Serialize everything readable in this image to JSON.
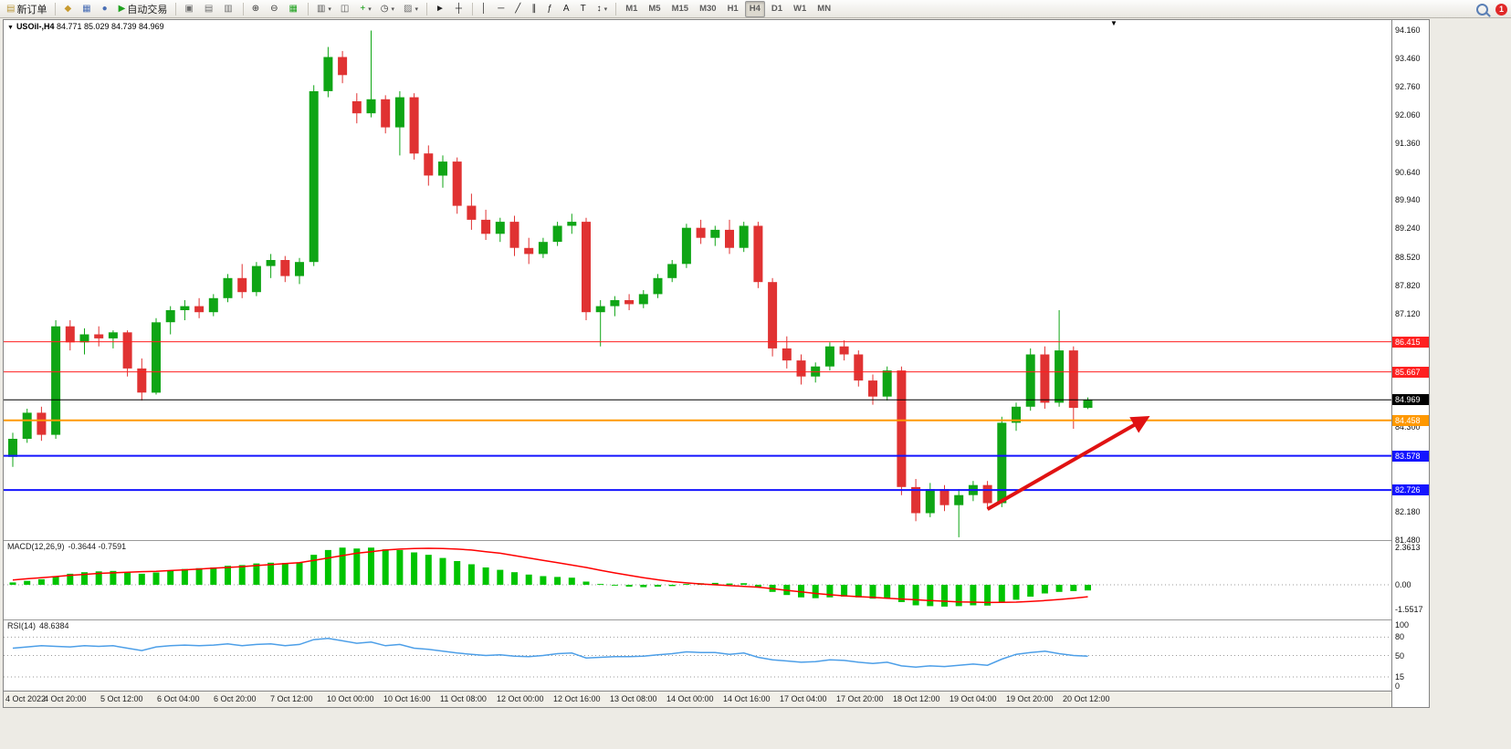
{
  "colors": {
    "bull": "#0FA515",
    "bear": "#E03232",
    "macd_bar": "#00C400",
    "macd_signal": "#FF0000",
    "rsi_line": "#4D9FE8",
    "arrow": "#E01212",
    "grid_dotted": "#999999"
  },
  "toolbar": {
    "notification_count": "1",
    "groups": [
      {
        "items": [
          {
            "name": "new-order",
            "icon": "new-order-icon",
            "glyph": "▤",
            "color": "#b8963a",
            "label": "新订单"
          }
        ]
      },
      {
        "items": [
          {
            "name": "market-watch",
            "icon": "market-watch-icon",
            "glyph": "◆",
            "color": "#c79a2e"
          },
          {
            "name": "data-window",
            "icon": "data-window-icon",
            "glyph": "▦",
            "color": "#4a6fb5"
          },
          {
            "name": "navigator",
            "icon": "navigator-icon",
            "glyph": "●",
            "color": "#4a6fb5"
          },
          {
            "name": "auto-trading",
            "icon": "auto-trading-icon",
            "glyph": "▶",
            "color": "#1ea11e",
            "label": "自动交易"
          }
        ]
      },
      {
        "items": [
          {
            "name": "tile-windows",
            "icon": "tile-windows-icon",
            "glyph": "▣",
            "color": "#6e6e6e"
          },
          {
            "name": "cascade-windows",
            "icon": "cascade-windows-icon",
            "glyph": "▤",
            "color": "#6e6e6e"
          },
          {
            "name": "arrange-windows",
            "icon": "arrange-windows-icon",
            "glyph": "▥",
            "color": "#6e6e6e"
          }
        ]
      },
      {
        "items": [
          {
            "name": "zoom-in",
            "icon": "zoom-in-icon",
            "glyph": "⊕",
            "color": "#333333"
          },
          {
            "name": "zoom-out",
            "icon": "zoom-out-icon",
            "glyph": "⊖",
            "color": "#333333"
          },
          {
            "name": "tile-charts",
            "icon": "tile-charts-icon",
            "glyph": "▦",
            "color": "#1ea11e"
          }
        ]
      },
      {
        "items": [
          {
            "name": "chart-bar-mode",
            "icon": "bar-chart-icon",
            "glyph": "▥",
            "color": "#555555",
            "dropdown": true
          },
          {
            "name": "chart-candle-mode",
            "icon": "candlestick-icon",
            "glyph": "◫",
            "color": "#555555"
          },
          {
            "name": "indicators",
            "icon": "indicators-icon",
            "glyph": "+",
            "color": "#089608",
            "dropdown": true
          },
          {
            "name": "periods",
            "icon": "clock-icon",
            "glyph": "◷",
            "color": "#333333",
            "dropdown": true
          },
          {
            "name": "templates",
            "icon": "templates-icon",
            "glyph": "▨",
            "color": "#6e6e6e",
            "dropdown": true
          }
        ]
      },
      {
        "items": [
          {
            "name": "cursor",
            "icon": "cursor-icon",
            "glyph": "►",
            "color": "#222222"
          },
          {
            "name": "crosshair",
            "icon": "crosshair-icon",
            "glyph": "┼",
            "color": "#222222"
          }
        ]
      },
      {
        "items": [
          {
            "name": "vertical-line",
            "icon": "vertical-line-icon",
            "glyph": "│",
            "color": "#222222"
          },
          {
            "name": "horizontal-line",
            "icon": "horizontal-line-icon",
            "glyph": "─",
            "color": "#222222"
          },
          {
            "name": "trendline",
            "icon": "trendline-icon",
            "glyph": "╱",
            "color": "#222222"
          },
          {
            "name": "channel",
            "icon": "channel-icon",
            "glyph": "∥",
            "color": "#222222"
          },
          {
            "name": "fibonacci",
            "icon": "fibonacci-icon",
            "glyph": "ƒ",
            "color": "#222222"
          },
          {
            "name": "text",
            "icon": "text-icon",
            "glyph": "A",
            "color": "#222222"
          },
          {
            "name": "text-label",
            "icon": "text-label-icon",
            "glyph": "T",
            "color": "#222222"
          },
          {
            "name": "arrow-objects",
            "icon": "arrow-objects-icon",
            "glyph": "↕",
            "color": "#222222",
            "dropdown": true
          }
        ]
      },
      {
        "items": [
          {
            "name": "tf-m1",
            "label": "M1",
            "tf": true
          },
          {
            "name": "tf-m5",
            "label": "M5",
            "tf": true
          },
          {
            "name": "tf-m15",
            "label": "M15",
            "tf": true
          },
          {
            "name": "tf-m30",
            "label": "M30",
            "tf": true
          },
          {
            "name": "tf-h1",
            "label": "H1",
            "tf": true
          },
          {
            "name": "tf-h4",
            "label": "H4",
            "tf": true,
            "active": true
          },
          {
            "name": "tf-d1",
            "label": "D1",
            "tf": true
          },
          {
            "name": "tf-w1",
            "label": "W1",
            "tf": true
          },
          {
            "name": "tf-mn",
            "label": "MN",
            "tf": true
          }
        ]
      }
    ]
  },
  "chart": {
    "symbol_period": "USOil-,H4",
    "ohlc": "84.771 85.029 84.739 84.969"
  },
  "chart_data": {
    "type": "candlestick",
    "symbol": "USOil-",
    "timeframe": "H4",
    "ylim": [
      81.48,
      94.42
    ],
    "price_ticks": [
      "94.160",
      "93.460",
      "92.760",
      "92.060",
      "91.360",
      "90.640",
      "89.940",
      "89.240",
      "88.520",
      "87.820",
      "87.120",
      "84.300",
      "82.180",
      "81.480"
    ],
    "hlines": [
      {
        "price": 86.415,
        "label": "86.415",
        "color": "#FF2020",
        "width": 1
      },
      {
        "price": 85.667,
        "label": "85.667",
        "color": "#FF2020",
        "width": 1
      },
      {
        "price": 84.969,
        "label": "84.969",
        "color": "#000000",
        "width": 1
      },
      {
        "price": 84.458,
        "label": "84.458",
        "color": "#FF9800",
        "width": 2
      },
      {
        "price": 83.578,
        "label": "83.578",
        "color": "#1414FF",
        "width": 2
      },
      {
        "price": 82.726,
        "label": "82.726",
        "color": "#1414FF",
        "width": 2
      }
    ],
    "x_labels": [
      "4 Oct 2022",
      "4 Oct 20:00",
      "5 Oct 12:00",
      "6 Oct 04:00",
      "6 Oct 20:00",
      "7 Oct 12:00",
      "10 Oct 00:00",
      "10 Oct 16:00",
      "11 Oct 08:00",
      "12 Oct 00:00",
      "12 Oct 16:00",
      "13 Oct 08:00",
      "14 Oct 00:00",
      "14 Oct 16:00",
      "17 Oct 04:00",
      "17 Oct 20:00",
      "18 Oct 12:00",
      "19 Oct 04:00",
      "19 Oct 20:00",
      "20 Oct 12:00"
    ],
    "candles": [
      [
        83.55,
        84.15,
        83.3,
        84.0
      ],
      [
        84.0,
        84.75,
        83.9,
        84.65
      ],
      [
        84.65,
        84.8,
        83.95,
        84.1
      ],
      [
        84.1,
        86.95,
        84.0,
        86.8
      ],
      [
        86.8,
        86.95,
        86.2,
        86.4
      ],
      [
        86.4,
        86.75,
        86.1,
        86.6
      ],
      [
        86.6,
        86.8,
        86.3,
        86.5
      ],
      [
        86.5,
        86.7,
        86.25,
        86.65
      ],
      [
        86.65,
        86.7,
        85.55,
        85.75
      ],
      [
        85.75,
        86.0,
        84.95,
        85.15
      ],
      [
        85.15,
        87.0,
        85.1,
        86.9
      ],
      [
        86.9,
        87.3,
        86.6,
        87.2
      ],
      [
        87.2,
        87.45,
        86.95,
        87.3
      ],
      [
        87.3,
        87.5,
        87.0,
        87.15
      ],
      [
        87.15,
        87.6,
        87.05,
        87.5
      ],
      [
        87.5,
        88.1,
        87.4,
        88.0
      ],
      [
        88.0,
        88.35,
        87.5,
        87.65
      ],
      [
        87.65,
        88.4,
        87.55,
        88.3
      ],
      [
        88.3,
        88.6,
        88.0,
        88.45
      ],
      [
        88.45,
        88.55,
        87.9,
        88.05
      ],
      [
        88.05,
        88.5,
        87.85,
        88.4
      ],
      [
        88.4,
        92.8,
        88.3,
        92.65
      ],
      [
        92.65,
        93.75,
        92.5,
        93.5
      ],
      [
        93.5,
        93.65,
        92.85,
        93.05
      ],
      [
        92.4,
        92.6,
        91.85,
        92.1
      ],
      [
        92.1,
        94.16,
        92.0,
        92.45
      ],
      [
        92.45,
        92.55,
        91.6,
        91.75
      ],
      [
        91.75,
        92.65,
        91.05,
        92.5
      ],
      [
        92.5,
        92.6,
        90.95,
        91.1
      ],
      [
        91.1,
        91.3,
        90.3,
        90.55
      ],
      [
        90.55,
        91.05,
        90.25,
        90.9
      ],
      [
        90.9,
        91.0,
        89.6,
        89.8
      ],
      [
        89.8,
        90.1,
        89.2,
        89.45
      ],
      [
        89.45,
        89.7,
        88.95,
        89.1
      ],
      [
        89.1,
        89.5,
        88.9,
        89.4
      ],
      [
        89.4,
        89.55,
        88.55,
        88.75
      ],
      [
        88.75,
        89.0,
        88.35,
        88.6
      ],
      [
        88.6,
        89.0,
        88.5,
        88.9
      ],
      [
        88.9,
        89.4,
        88.8,
        89.3
      ],
      [
        89.3,
        89.6,
        89.1,
        89.4
      ],
      [
        89.4,
        89.5,
        86.95,
        87.15
      ],
      [
        87.15,
        87.45,
        86.3,
        87.3
      ],
      [
        87.3,
        87.55,
        87.05,
        87.45
      ],
      [
        87.45,
        87.6,
        87.2,
        87.35
      ],
      [
        87.35,
        87.7,
        87.25,
        87.6
      ],
      [
        87.6,
        88.1,
        87.5,
        88.0
      ],
      [
        88.0,
        88.45,
        87.9,
        88.35
      ],
      [
        88.35,
        89.35,
        88.25,
        89.25
      ],
      [
        89.25,
        89.45,
        88.85,
        89.0
      ],
      [
        89.0,
        89.3,
        88.8,
        89.2
      ],
      [
        89.2,
        89.45,
        88.6,
        88.75
      ],
      [
        88.75,
        89.4,
        88.65,
        89.3
      ],
      [
        89.3,
        89.4,
        87.75,
        87.9
      ],
      [
        87.9,
        88.0,
        86.05,
        86.25
      ],
      [
        86.25,
        86.55,
        85.75,
        85.95
      ],
      [
        85.95,
        86.1,
        85.35,
        85.55
      ],
      [
        85.55,
        85.9,
        85.4,
        85.8
      ],
      [
        85.8,
        86.4,
        85.7,
        86.3
      ],
      [
        86.3,
        86.45,
        85.95,
        86.1
      ],
      [
        86.1,
        86.2,
        85.3,
        85.45
      ],
      [
        85.45,
        85.6,
        84.85,
        85.05
      ],
      [
        85.05,
        85.8,
        84.95,
        85.7
      ],
      [
        85.7,
        85.8,
        82.6,
        82.8
      ],
      [
        82.8,
        83.0,
        81.95,
        82.15
      ],
      [
        82.15,
        82.9,
        82.05,
        82.75
      ],
      [
        82.75,
        82.85,
        82.2,
        82.35
      ],
      [
        82.35,
        82.75,
        81.55,
        82.6
      ],
      [
        82.6,
        82.95,
        82.45,
        82.85
      ],
      [
        82.85,
        82.95,
        82.25,
        82.4
      ],
      [
        82.4,
        84.55,
        82.3,
        84.4
      ],
      [
        84.4,
        84.9,
        84.2,
        84.8
      ],
      [
        84.8,
        86.25,
        84.7,
        86.1
      ],
      [
        86.1,
        86.3,
        84.75,
        84.9
      ],
      [
        84.9,
        87.2,
        84.8,
        86.2
      ],
      [
        86.2,
        86.3,
        84.25,
        84.77
      ],
      [
        84.77,
        85.03,
        84.74,
        84.97
      ]
    ],
    "annotation_arrow": {
      "from": {
        "x_index": 68,
        "price": 82.25
      },
      "to": {
        "x_index": 79,
        "price": 84.5
      }
    },
    "indicators": [
      {
        "type": "macd",
        "label": "MACD(12,26,9)",
        "values_text": "-0.3644 -0.7591",
        "axis": [
          "2.3613",
          "0.00",
          "-1.5517"
        ],
        "histogram": [
          0.15,
          0.25,
          0.35,
          0.55,
          0.7,
          0.8,
          0.85,
          0.88,
          0.8,
          0.7,
          0.78,
          0.9,
          1.0,
          1.05,
          1.1,
          1.2,
          1.25,
          1.35,
          1.4,
          1.38,
          1.4,
          1.9,
          2.2,
          2.36,
          2.3,
          2.36,
          2.25,
          2.2,
          2.05,
          1.9,
          1.7,
          1.5,
          1.3,
          1.1,
          0.95,
          0.8,
          0.65,
          0.55,
          0.5,
          0.45,
          0.2,
          0.05,
          -0.05,
          -0.12,
          -0.15,
          -0.12,
          -0.08,
          0.05,
          0.1,
          0.12,
          0.08,
          0.1,
          -0.15,
          -0.45,
          -0.65,
          -0.8,
          -0.85,
          -0.8,
          -0.75,
          -0.8,
          -0.88,
          -0.85,
          -1.1,
          -1.3,
          -1.35,
          -1.38,
          -1.35,
          -1.3,
          -1.32,
          -1.1,
          -0.95,
          -0.75,
          -0.55,
          -0.45,
          -0.4,
          -0.36
        ],
        "signal": [
          0.3,
          0.38,
          0.45,
          0.52,
          0.6,
          0.66,
          0.72,
          0.76,
          0.8,
          0.83,
          0.85,
          0.9,
          0.95,
          1.0,
          1.05,
          1.1,
          1.15,
          1.22,
          1.28,
          1.34,
          1.4,
          1.55,
          1.7,
          1.85,
          2.0,
          2.1,
          2.2,
          2.26,
          2.3,
          2.31,
          2.3,
          2.26,
          2.2,
          2.1,
          2.0,
          1.85,
          1.7,
          1.55,
          1.4,
          1.25,
          1.1,
          0.92,
          0.75,
          0.6,
          0.45,
          0.32,
          0.2,
          0.12,
          0.05,
          0.0,
          -0.05,
          -0.1,
          -0.15,
          -0.25,
          -0.35,
          -0.45,
          -0.55,
          -0.63,
          -0.7,
          -0.75,
          -0.8,
          -0.85,
          -0.9,
          -0.95,
          -1.0,
          -1.04,
          -1.08,
          -1.1,
          -1.12,
          -1.11,
          -1.1,
          -1.05,
          -1.0,
          -0.93,
          -0.85,
          -0.76
        ]
      },
      {
        "type": "rsi",
        "label": "RSI(14)",
        "value_text": "48.6384",
        "axis": [
          "100",
          "80",
          "50",
          "15",
          "0"
        ],
        "levels": [
          80,
          50,
          15
        ],
        "series": [
          62,
          64,
          66,
          65,
          64,
          66,
          65,
          66,
          62,
          58,
          64,
          66,
          67,
          66,
          67,
          69,
          66,
          68,
          69,
          66,
          68,
          76,
          78,
          74,
          70,
          72,
          66,
          68,
          62,
          60,
          57,
          54,
          52,
          50,
          51,
          49,
          48,
          50,
          53,
          54,
          46,
          47,
          48,
          48,
          49,
          51,
          53,
          56,
          55,
          55,
          52,
          54,
          47,
          43,
          41,
          39,
          40,
          43,
          42,
          39,
          37,
          39,
          33,
          31,
          33,
          32,
          34,
          36,
          34,
          44,
          52,
          55,
          57,
          53,
          50,
          49
        ]
      }
    ]
  }
}
